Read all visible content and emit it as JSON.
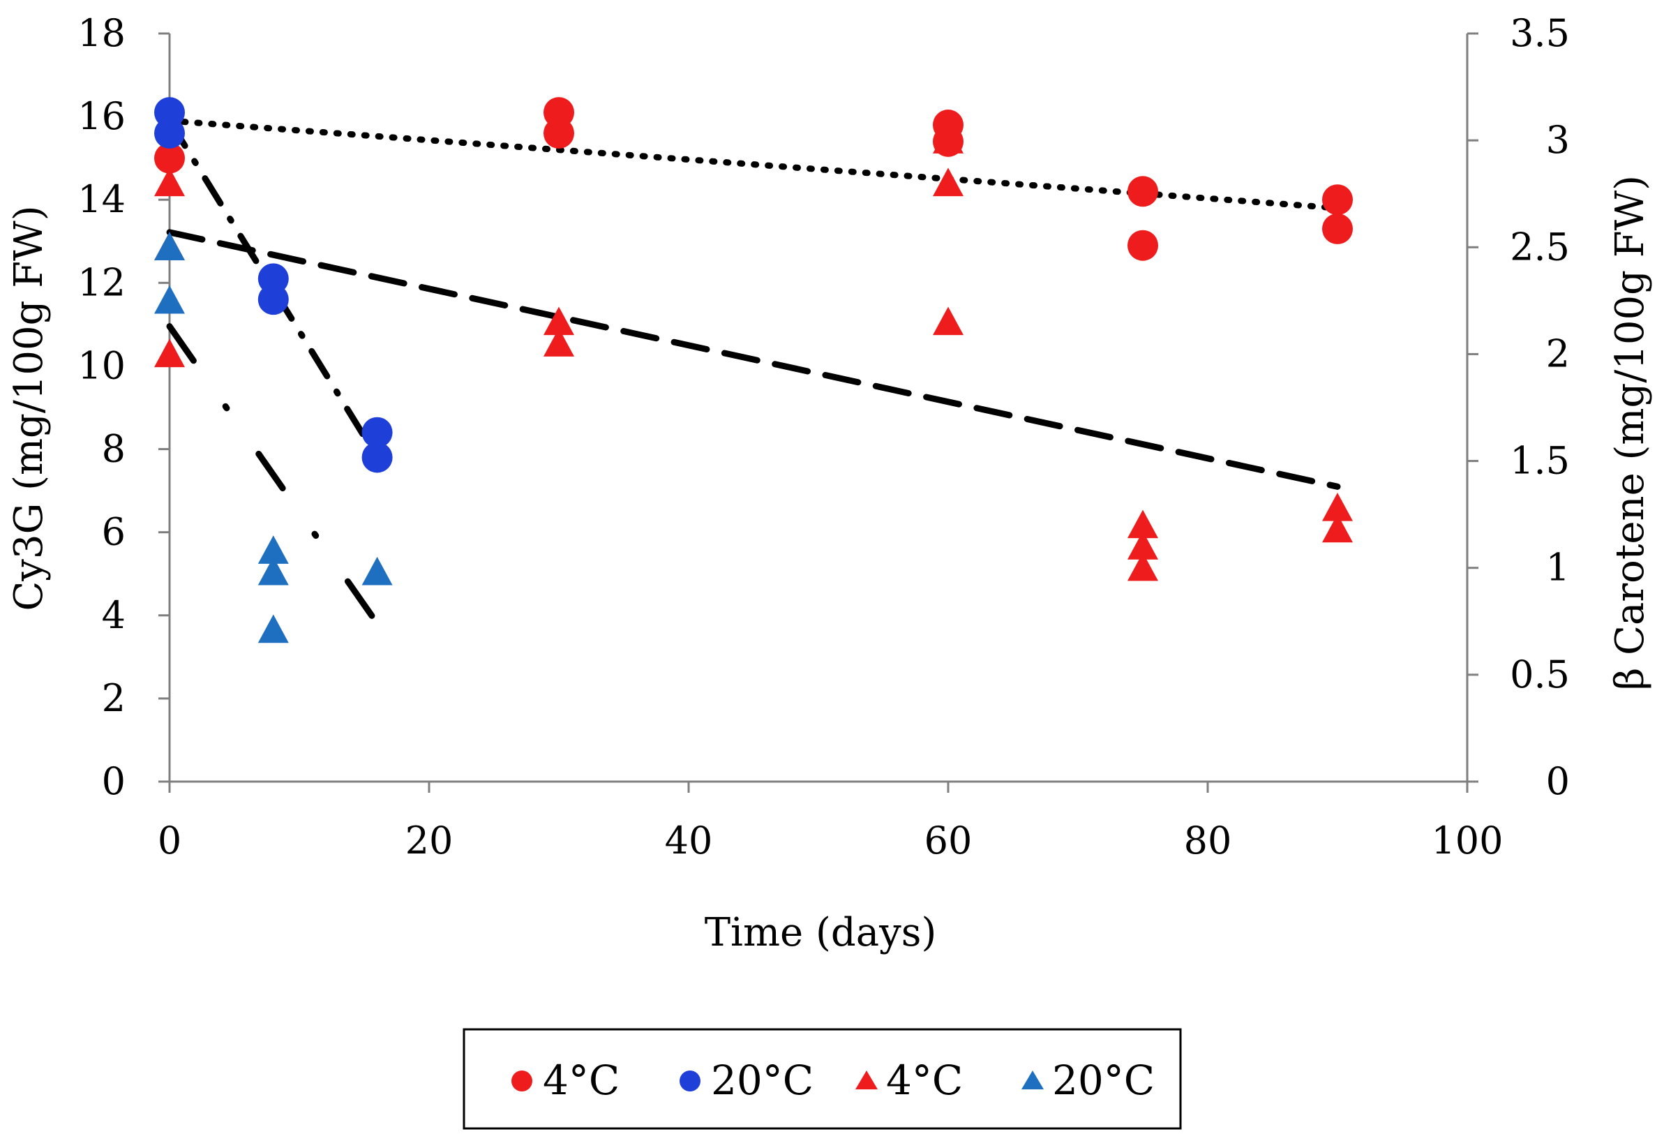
{
  "chart_data": {
    "type": "scatter",
    "title": "",
    "xlabel": "Time (days)",
    "ylabel_left": "Cy3G (mg/100g FW)",
    "ylabel_right": "β Carotene (mg/100g FW)",
    "xlim": [
      0,
      100
    ],
    "xticks": [
      0,
      20,
      40,
      60,
      80,
      100
    ],
    "ylim_left": [
      0,
      18
    ],
    "yticks_left": [
      0,
      2,
      4,
      6,
      8,
      10,
      12,
      14,
      16,
      18
    ],
    "ylim_right": [
      0,
      3.5
    ],
    "yticks_right": [
      0,
      0.5,
      1,
      1.5,
      2,
      2.5,
      3,
      3.5
    ],
    "grid": false,
    "legend_position": "bottom",
    "series": [
      {
        "name": "4°C",
        "marker": "circle",
        "axis": "left",
        "color": "#ee1c1c",
        "points": [
          [
            0,
            15.0
          ],
          [
            30,
            16.1
          ],
          [
            30,
            15.6
          ],
          [
            60,
            15.8
          ],
          [
            60,
            15.4
          ],
          [
            75,
            14.2
          ],
          [
            75,
            12.9
          ],
          [
            90,
            14.0
          ],
          [
            90,
            13.3
          ]
        ],
        "trendline": {
          "style": "dotted",
          "from": [
            0,
            15.9
          ],
          "to": [
            90,
            13.8
          ]
        }
      },
      {
        "name": "20°C",
        "marker": "circle",
        "axis": "left",
        "color": "#1f3fd9",
        "points": [
          [
            0,
            16.1
          ],
          [
            0,
            15.6
          ],
          [
            8,
            12.1
          ],
          [
            8,
            11.6
          ],
          [
            16,
            8.4
          ],
          [
            16,
            7.8
          ]
        ],
        "trendline": {
          "style": "dash-dot",
          "from": [
            0,
            15.9
          ],
          "to": [
            16,
            7.8
          ]
        }
      },
      {
        "name": "4°C",
        "marker": "triangle",
        "axis": "right",
        "color": "#ee1c1c",
        "points": [
          [
            0,
            2.8
          ],
          [
            0,
            2.5
          ],
          [
            0,
            2.0
          ],
          [
            30,
            2.15
          ],
          [
            30,
            2.05
          ],
          [
            60,
            3.0
          ],
          [
            60,
            2.8
          ],
          [
            60,
            2.15
          ],
          [
            75,
            1.2
          ],
          [
            75,
            1.1
          ],
          [
            75,
            1.0
          ],
          [
            90,
            1.28
          ],
          [
            90,
            1.18
          ]
        ],
        "trendline": {
          "style": "dashed",
          "from": [
            0,
            2.57
          ],
          "to": [
            90,
            1.38
          ]
        }
      },
      {
        "name": "20°C",
        "marker": "triangle",
        "axis": "right",
        "color": "#1f6fc0",
        "points": [
          [
            0,
            2.5
          ],
          [
            0,
            2.25
          ],
          [
            8,
            1.08
          ],
          [
            8,
            0.98
          ],
          [
            8,
            0.71
          ],
          [
            16,
            0.98
          ]
        ],
        "trendline": {
          "style": "long-dash-dot",
          "from": [
            0,
            2.13
          ],
          "to": [
            16,
            0.74
          ]
        }
      }
    ]
  }
}
